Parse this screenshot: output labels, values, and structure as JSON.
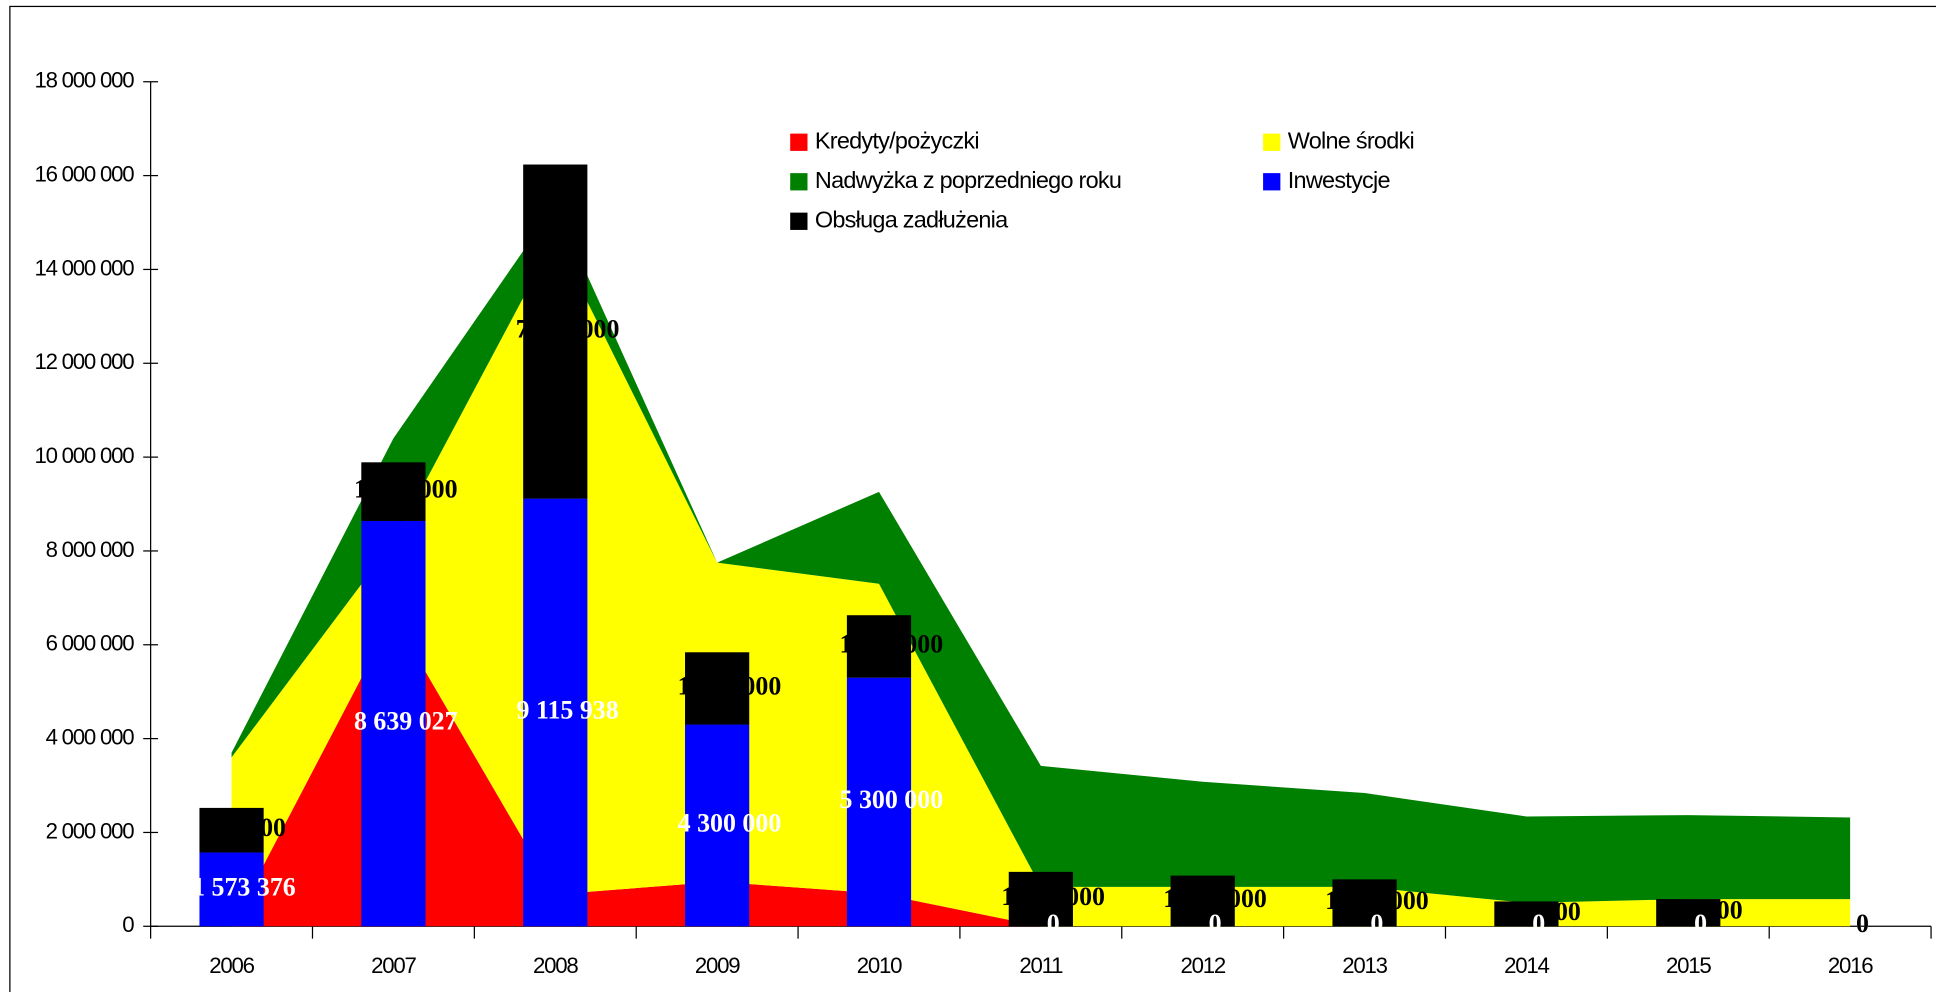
{
  "chart_data": {
    "type": "combo",
    "categories": [
      "2006",
      "2007",
      "2008",
      "2009",
      "2010",
      "2011",
      "2012",
      "2013",
      "2014",
      "2015",
      "2016"
    ],
    "series": [
      {
        "name": "Kredyty/pożyczki",
        "color": "#ff0000",
        "type": "area",
        "values": [
          0,
          6600000,
          680000,
          950000,
          700000,
          0,
          0,
          0,
          0,
          0,
          0
        ]
      },
      {
        "name": "Wolne środki",
        "color": "#ffff00",
        "type": "area",
        "values": [
          3600000,
          1600000,
          14000000,
          6800000,
          6600000,
          840000,
          840000,
          840000,
          500000,
          580000,
          580000
        ]
      },
      {
        "name": "Nadwyżka z poprzedniego roku",
        "color": "#008000",
        "type": "area",
        "values": [
          100000,
          2200000,
          700000,
          0,
          1960000,
          2580000,
          2240000,
          2000000,
          1840000,
          1790000,
          1740000
        ]
      },
      {
        "name": "Inwestycje",
        "color": "#0000ff",
        "type": "bar",
        "label_color": "#ffffff",
        "values": [
          1573376,
          8639027,
          9115938,
          4300000,
          5300000,
          0,
          0,
          0,
          0,
          0,
          0
        ],
        "value_labels": [
          "1 573 376",
          "8 639 027",
          "9 115 938",
          "4 300 000",
          "5 300 000",
          "0",
          "0",
          "0",
          "0",
          "0",
          "0"
        ]
      },
      {
        "name": "Obsługa zadłużenia",
        "color": "#000000",
        "type": "bar",
        "label_color": "#000000",
        "values": [
          950000,
          1250000,
          7120000,
          1540000,
          1330000,
          1160000,
          1080000,
          1000000,
          530000,
          580000,
          0
        ],
        "value_labels": [
          "950 000",
          "1 250 000",
          "7 120 000",
          "1 540 000",
          "1 330 000",
          "1 160 000",
          "1 080 000",
          "1 000 000",
          "530 000",
          "580 000",
          "0"
        ]
      }
    ],
    "ylim": [
      0,
      18000000
    ],
    "yticks": [
      0,
      {
        "value": 2000000,
        "label": "2 000 000"
      },
      {
        "value": 4000000,
        "label": "4 000 000"
      },
      {
        "value": 6000000,
        "label": "6 000 000"
      },
      {
        "value": 8000000,
        "label": "8 000 000"
      },
      {
        "value": 10000000,
        "label": "10 000 000"
      },
      {
        "value": 12000000,
        "label": "12 000 000"
      },
      {
        "value": 14000000,
        "label": "14 000 000"
      },
      {
        "value": 16000000,
        "label": "16 000 000"
      },
      {
        "value": 18000000,
        "label": "18 000 000"
      }
    ],
    "grid": false,
    "legend": "top"
  }
}
